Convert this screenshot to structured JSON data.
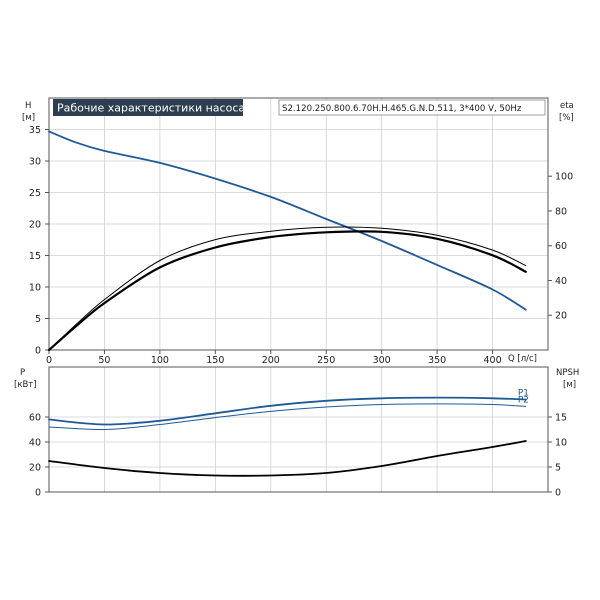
{
  "title": "Рабочие характеристики насоса",
  "model": "S2.120.250.800.6.70H.H.465.G.N.D.511, 3*400 V, 50Hz",
  "colors": {
    "head": "#1f5a96",
    "power": "#1f5a96",
    "npsh": "#000000",
    "efficiency": "#000000",
    "grid": "#cfcfcf",
    "title_bg": "#2d3e50"
  },
  "axes": {
    "h_label": "H",
    "h_unit": "[м]",
    "eta_label": "eta",
    "eta_unit": "[%]",
    "q_label": "Q [л/с]",
    "p_label": "P",
    "p_unit": "[кВт]",
    "npsh_label": "NPSH",
    "npsh_unit": "[м]"
  },
  "chart_data": [
    {
      "type": "line",
      "title": "Рабочие характеристики насоса",
      "xlabel": "Q [л/с]",
      "ylabel": "H [м]",
      "y2label": "eta [%]",
      "xlim": [
        0,
        450
      ],
      "ylim": [
        0,
        40
      ],
      "y2lim": [
        0,
        145
      ],
      "xticks": [
        0,
        50,
        100,
        150,
        200,
        250,
        300,
        350,
        400
      ],
      "yticks": [
        0,
        5,
        10,
        15,
        20,
        25,
        30,
        35
      ],
      "y2ticks": [
        20,
        40,
        60,
        80,
        100
      ],
      "grid": true,
      "series": [
        {
          "axis": "H",
          "x": [
            0,
            25,
            50,
            100,
            150,
            200,
            250,
            300,
            350,
            400,
            430
          ],
          "y": [
            34.7,
            32.9,
            31.6,
            29.7,
            27.2,
            24.3,
            20.8,
            17.3,
            13.5,
            9.6,
            6.4
          ]
        },
        {
          "axis": "eta",
          "x": [
            0,
            25,
            50,
            100,
            150,
            200,
            250,
            300,
            350,
            400,
            430
          ],
          "y": [
            0,
            14,
            27,
            47.5,
            59,
            65,
            67.7,
            68,
            64,
            54.5,
            45
          ]
        },
        {
          "axis": "eta",
          "x": [
            0,
            25,
            50,
            100,
            150,
            200,
            250,
            300,
            350,
            400,
            430
          ],
          "y": [
            0,
            15,
            29,
            51.5,
            63.5,
            68.3,
            70.6,
            70,
            66,
            57.5,
            48.5
          ]
        }
      ]
    },
    {
      "type": "line",
      "xlabel": "Q [л/с]",
      "ylabel": "P [кВт]",
      "y2label": "NPSH [м]",
      "xlim": [
        0,
        450
      ],
      "ylim": [
        0,
        100
      ],
      "y2lim": [
        0,
        25
      ],
      "yticks": [
        0,
        20,
        40,
        60
      ],
      "y2ticks": [
        0,
        5,
        10,
        15
      ],
      "grid": true,
      "series": [
        {
          "name": "P1",
          "axis": "P",
          "x": [
            0,
            50,
            100,
            150,
            200,
            250,
            300,
            350,
            400,
            430
          ],
          "y": [
            58,
            54,
            57,
            63,
            69,
            73,
            75,
            75.5,
            75,
            74
          ]
        },
        {
          "name": "P2",
          "axis": "P",
          "x": [
            0,
            50,
            100,
            150,
            200,
            250,
            300,
            350,
            400,
            430
          ],
          "y": [
            52,
            50,
            54,
            59.5,
            64.5,
            68,
            70,
            70.5,
            70,
            68.5
          ]
        },
        {
          "axis": "NPSH",
          "x": [
            0,
            50,
            100,
            150,
            200,
            250,
            300,
            350,
            400,
            430
          ],
          "y": [
            6.2,
            4.8,
            3.8,
            3.3,
            3.3,
            3.8,
            5.2,
            7.2,
            9.0,
            10.2
          ]
        }
      ]
    }
  ]
}
